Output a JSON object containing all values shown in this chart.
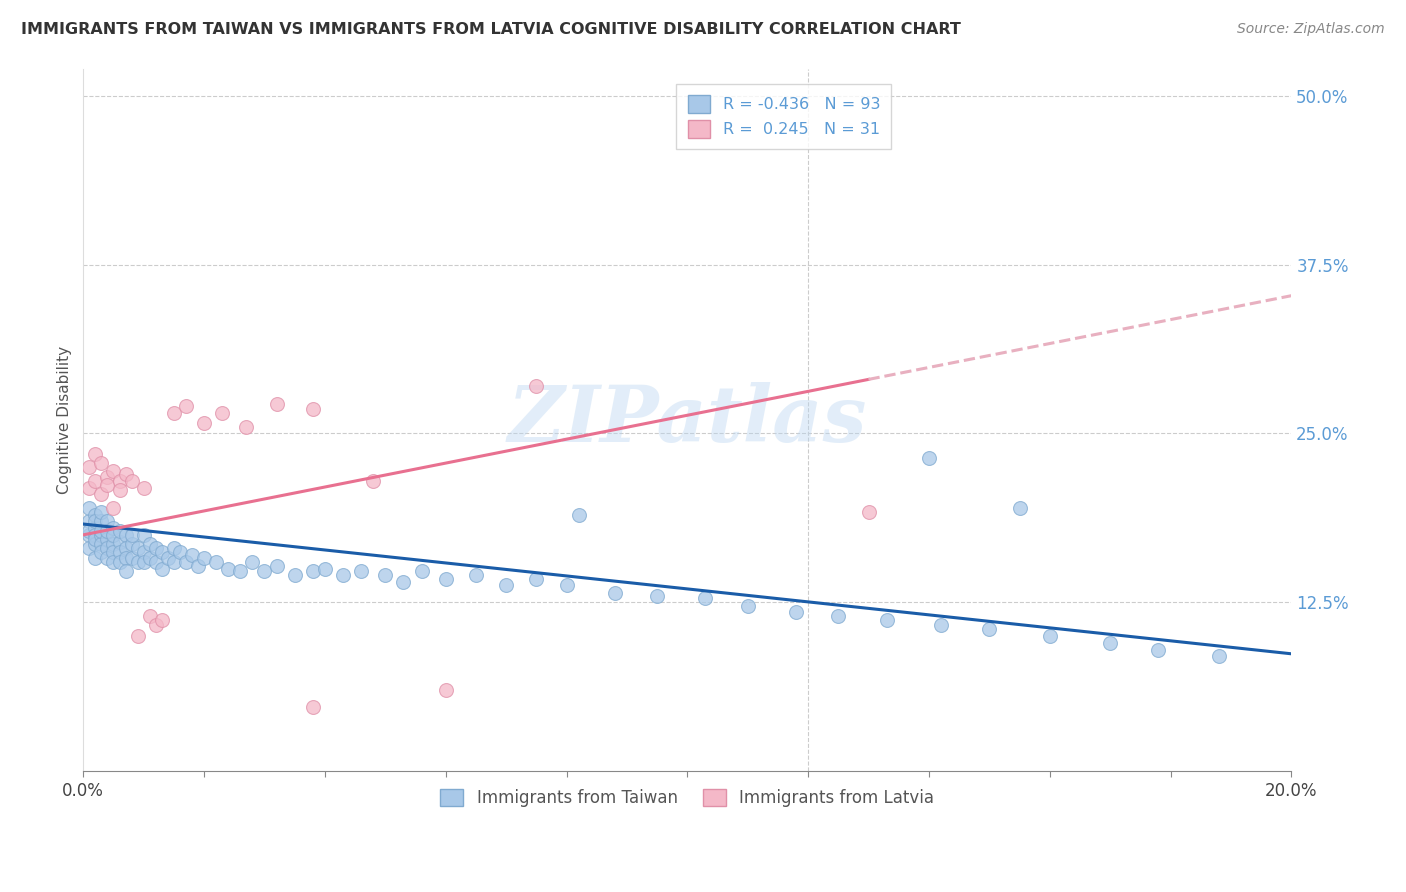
{
  "title": "IMMIGRANTS FROM TAIWAN VS IMMIGRANTS FROM LATVIA COGNITIVE DISABILITY CORRELATION CHART",
  "source": "Source: ZipAtlas.com",
  "ylabel": "Cognitive Disability",
  "xlim": [
    0.0,
    0.2
  ],
  "ylim": [
    0.0,
    0.52
  ],
  "taiwan_color": "#a8c8e8",
  "taiwan_edge_color": "#80aad0",
  "latvia_color": "#f4b8c8",
  "latvia_edge_color": "#e090a8",
  "taiwan_line_color": "#1a5ca8",
  "latvia_line_color": "#e87090",
  "latvia_line_dashed_color": "#e8b0c0",
  "taiwan_R": -0.436,
  "taiwan_N": 93,
  "latvia_R": 0.245,
  "latvia_N": 31,
  "legend_taiwan_label": "Immigrants from Taiwan",
  "legend_latvia_label": "Immigrants from Latvia",
  "watermark": "ZIPatlas",
  "taiwan_scatter_x": [
    0.001,
    0.001,
    0.001,
    0.001,
    0.001,
    0.002,
    0.002,
    0.002,
    0.002,
    0.002,
    0.002,
    0.002,
    0.003,
    0.003,
    0.003,
    0.003,
    0.003,
    0.003,
    0.004,
    0.004,
    0.004,
    0.004,
    0.004,
    0.005,
    0.005,
    0.005,
    0.005,
    0.005,
    0.006,
    0.006,
    0.006,
    0.006,
    0.007,
    0.007,
    0.007,
    0.007,
    0.008,
    0.008,
    0.008,
    0.009,
    0.009,
    0.01,
    0.01,
    0.01,
    0.011,
    0.011,
    0.012,
    0.012,
    0.013,
    0.013,
    0.014,
    0.015,
    0.015,
    0.016,
    0.017,
    0.018,
    0.019,
    0.02,
    0.022,
    0.024,
    0.026,
    0.028,
    0.03,
    0.032,
    0.035,
    0.038,
    0.04,
    0.043,
    0.046,
    0.05,
    0.053,
    0.056,
    0.06,
    0.065,
    0.07,
    0.075,
    0.08,
    0.088,
    0.095,
    0.103,
    0.11,
    0.118,
    0.125,
    0.133,
    0.142,
    0.15,
    0.16,
    0.17,
    0.178,
    0.188,
    0.14,
    0.155,
    0.082
  ],
  "taiwan_scatter_y": [
    0.185,
    0.175,
    0.195,
    0.165,
    0.178,
    0.18,
    0.175,
    0.168,
    0.19,
    0.172,
    0.185,
    0.158,
    0.175,
    0.185,
    0.168,
    0.178,
    0.162,
    0.192,
    0.172,
    0.185,
    0.165,
    0.178,
    0.158,
    0.18,
    0.168,
    0.175,
    0.162,
    0.155,
    0.17,
    0.178,
    0.162,
    0.155,
    0.175,
    0.165,
    0.158,
    0.148,
    0.168,
    0.175,
    0.158,
    0.165,
    0.155,
    0.175,
    0.162,
    0.155,
    0.168,
    0.158,
    0.165,
    0.155,
    0.162,
    0.15,
    0.158,
    0.165,
    0.155,
    0.162,
    0.155,
    0.16,
    0.152,
    0.158,
    0.155,
    0.15,
    0.148,
    0.155,
    0.148,
    0.152,
    0.145,
    0.148,
    0.15,
    0.145,
    0.148,
    0.145,
    0.14,
    0.148,
    0.142,
    0.145,
    0.138,
    0.142,
    0.138,
    0.132,
    0.13,
    0.128,
    0.122,
    0.118,
    0.115,
    0.112,
    0.108,
    0.105,
    0.1,
    0.095,
    0.09,
    0.085,
    0.232,
    0.195,
    0.19
  ],
  "latvia_scatter_x": [
    0.001,
    0.001,
    0.002,
    0.002,
    0.003,
    0.003,
    0.004,
    0.004,
    0.005,
    0.005,
    0.006,
    0.006,
    0.007,
    0.008,
    0.009,
    0.01,
    0.011,
    0.012,
    0.013,
    0.015,
    0.017,
    0.02,
    0.023,
    0.027,
    0.032,
    0.038,
    0.048,
    0.06,
    0.075,
    0.13,
    0.038
  ],
  "latvia_scatter_y": [
    0.21,
    0.225,
    0.215,
    0.235,
    0.205,
    0.228,
    0.218,
    0.212,
    0.222,
    0.195,
    0.215,
    0.208,
    0.22,
    0.215,
    0.1,
    0.21,
    0.115,
    0.108,
    0.112,
    0.265,
    0.27,
    0.258,
    0.265,
    0.255,
    0.272,
    0.268,
    0.215,
    0.06,
    0.285,
    0.192,
    0.048
  ],
  "taiwan_line_x0": 0.0,
  "taiwan_line_x1": 0.2,
  "taiwan_line_y0": 0.183,
  "taiwan_line_y1": 0.087,
  "latvia_line_solid_x0": 0.0,
  "latvia_line_solid_x1": 0.13,
  "latvia_line_y0": 0.175,
  "latvia_line_y1": 0.29,
  "latvia_line_dash_x0": 0.13,
  "latvia_line_dash_x1": 0.2
}
